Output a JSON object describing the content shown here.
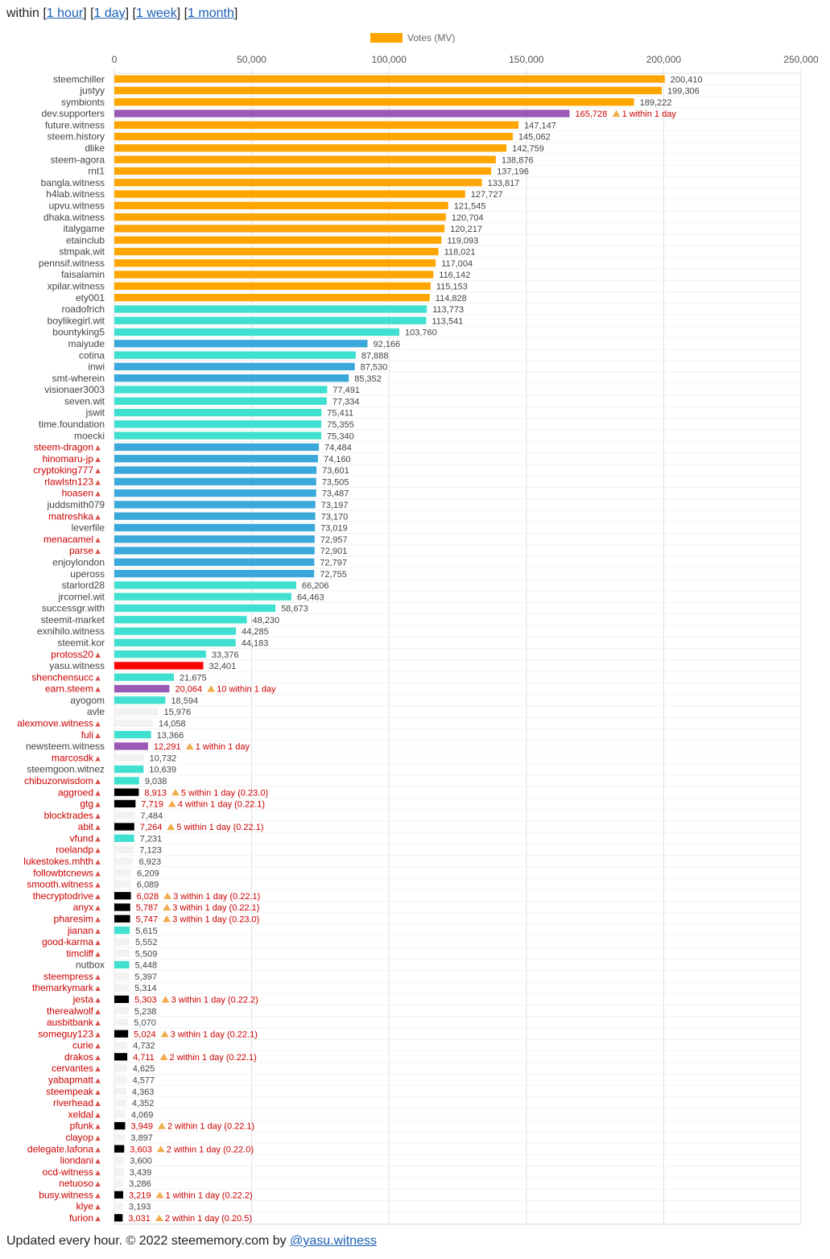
{
  "header": {
    "prefix": "within",
    "links": [
      "1 hour",
      "1 day",
      "1 week",
      "1 month"
    ]
  },
  "footer": {
    "text": "Updated every hour. © 2022 steememory.com by ",
    "link": "@yasu.witness"
  },
  "colors": {
    "orange": "#ffa500",
    "purple": "#9b59b6",
    "teal": "#40e0d0",
    "blue": "#3aa8da",
    "red": "#ff0000",
    "black": "#000000",
    "grey": "#f2f2f2",
    "active_label": "#444444",
    "disabled_label": "#cc0000",
    "grid": "#e0e0e0"
  },
  "chart_data": {
    "type": "bar",
    "orientation": "horizontal",
    "legend": "Votes (MV)",
    "legend_position": "top-center",
    "xlim": [
      0,
      250000
    ],
    "xticks": [
      "0",
      "50,000",
      "100,000",
      "150,000",
      "200,000",
      "250,000"
    ],
    "grid": true,
    "bars": [
      {
        "name": "steemchiller",
        "value": 200410,
        "value_label": "200,410",
        "color": "orange",
        "disabled": false,
        "note": ""
      },
      {
        "name": "justyy",
        "value": 199306,
        "value_label": "199,306",
        "color": "orange",
        "disabled": false,
        "note": ""
      },
      {
        "name": "symbionts",
        "value": 189222,
        "value_label": "189,222",
        "color": "orange",
        "disabled": false,
        "note": ""
      },
      {
        "name": "dev.supporters",
        "value": 165728,
        "value_label": "165,728",
        "color": "purple",
        "disabled": false,
        "note": "1 within 1 day"
      },
      {
        "name": "future.witness",
        "value": 147147,
        "value_label": "147,147",
        "color": "orange",
        "disabled": false,
        "note": ""
      },
      {
        "name": "steem.history",
        "value": 145062,
        "value_label": "145,062",
        "color": "orange",
        "disabled": false,
        "note": ""
      },
      {
        "name": "dlike",
        "value": 142759,
        "value_label": "142,759",
        "color": "orange",
        "disabled": false,
        "note": ""
      },
      {
        "name": "steem-agora",
        "value": 138876,
        "value_label": "138,876",
        "color": "orange",
        "disabled": false,
        "note": ""
      },
      {
        "name": "rnt1",
        "value": 137196,
        "value_label": "137,196",
        "color": "orange",
        "disabled": false,
        "note": ""
      },
      {
        "name": "bangla.witness",
        "value": 133817,
        "value_label": "133,817",
        "color": "orange",
        "disabled": false,
        "note": ""
      },
      {
        "name": "h4lab.witness",
        "value": 127727,
        "value_label": "127,727",
        "color": "orange",
        "disabled": false,
        "note": ""
      },
      {
        "name": "upvu.witness",
        "value": 121545,
        "value_label": "121,545",
        "color": "orange",
        "disabled": false,
        "note": ""
      },
      {
        "name": "dhaka.witness",
        "value": 120704,
        "value_label": "120,704",
        "color": "orange",
        "disabled": false,
        "note": ""
      },
      {
        "name": "italygame",
        "value": 120217,
        "value_label": "120,217",
        "color": "orange",
        "disabled": false,
        "note": ""
      },
      {
        "name": "etainclub",
        "value": 119093,
        "value_label": "119,093",
        "color": "orange",
        "disabled": false,
        "note": ""
      },
      {
        "name": "stmpak.wit",
        "value": 118021,
        "value_label": "118,021",
        "color": "orange",
        "disabled": false,
        "note": ""
      },
      {
        "name": "pennsif.witness",
        "value": 117004,
        "value_label": "117,004",
        "color": "orange",
        "disabled": false,
        "note": ""
      },
      {
        "name": "faisalamin",
        "value": 116142,
        "value_label": "116,142",
        "color": "orange",
        "disabled": false,
        "note": ""
      },
      {
        "name": "xpilar.witness",
        "value": 115153,
        "value_label": "115,153",
        "color": "orange",
        "disabled": false,
        "note": ""
      },
      {
        "name": "ety001",
        "value": 114828,
        "value_label": "114,828",
        "color": "orange",
        "disabled": false,
        "note": ""
      },
      {
        "name": "roadofrich",
        "value": 113773,
        "value_label": "113,773",
        "color": "teal",
        "disabled": false,
        "note": ""
      },
      {
        "name": "boylikegirl.wit",
        "value": 113541,
        "value_label": "113,541",
        "color": "teal",
        "disabled": false,
        "note": ""
      },
      {
        "name": "bountyking5",
        "value": 103760,
        "value_label": "103,760",
        "color": "teal",
        "disabled": false,
        "note": ""
      },
      {
        "name": "maiyude",
        "value": 92166,
        "value_label": "92,166",
        "color": "blue",
        "disabled": false,
        "note": ""
      },
      {
        "name": "cotina",
        "value": 87888,
        "value_label": "87,888",
        "color": "teal",
        "disabled": false,
        "note": ""
      },
      {
        "name": "inwi",
        "value": 87530,
        "value_label": "87,530",
        "color": "blue",
        "disabled": false,
        "note": ""
      },
      {
        "name": "smt-wherein",
        "value": 85352,
        "value_label": "85,352",
        "color": "blue",
        "disabled": false,
        "note": ""
      },
      {
        "name": "visionaer3003",
        "value": 77491,
        "value_label": "77,491",
        "color": "teal",
        "disabled": false,
        "note": ""
      },
      {
        "name": "seven.wit",
        "value": 77334,
        "value_label": "77,334",
        "color": "teal",
        "disabled": false,
        "note": ""
      },
      {
        "name": "jswit",
        "value": 75411,
        "value_label": "75,411",
        "color": "teal",
        "disabled": false,
        "note": ""
      },
      {
        "name": "time.foundation",
        "value": 75355,
        "value_label": "75,355",
        "color": "teal",
        "disabled": false,
        "note": ""
      },
      {
        "name": "moecki",
        "value": 75340,
        "value_label": "75,340",
        "color": "teal",
        "disabled": false,
        "note": ""
      },
      {
        "name": "steem-dragon",
        "value": 74484,
        "value_label": "74,484",
        "color": "blue",
        "disabled": true,
        "note": ""
      },
      {
        "name": "hinomaru-jp",
        "value": 74160,
        "value_label": "74,160",
        "color": "blue",
        "disabled": true,
        "note": ""
      },
      {
        "name": "cryptoking777",
        "value": 73601,
        "value_label": "73,601",
        "color": "blue",
        "disabled": true,
        "note": ""
      },
      {
        "name": "rlawlstn123",
        "value": 73505,
        "value_label": "73,505",
        "color": "blue",
        "disabled": true,
        "note": ""
      },
      {
        "name": "hoasen",
        "value": 73487,
        "value_label": "73,487",
        "color": "blue",
        "disabled": true,
        "note": ""
      },
      {
        "name": "juddsmith079",
        "value": 73197,
        "value_label": "73,197",
        "color": "blue",
        "disabled": false,
        "note": ""
      },
      {
        "name": "matreshka",
        "value": 73170,
        "value_label": "73,170",
        "color": "blue",
        "disabled": true,
        "note": ""
      },
      {
        "name": "leverfile",
        "value": 73019,
        "value_label": "73,019",
        "color": "blue",
        "disabled": false,
        "note": ""
      },
      {
        "name": "menacamel",
        "value": 72957,
        "value_label": "72,957",
        "color": "blue",
        "disabled": true,
        "note": ""
      },
      {
        "name": "parse",
        "value": 72901,
        "value_label": "72,901",
        "color": "blue",
        "disabled": true,
        "note": ""
      },
      {
        "name": "enjoylondon",
        "value": 72797,
        "value_label": "72,797",
        "color": "blue",
        "disabled": false,
        "note": ""
      },
      {
        "name": "upeross",
        "value": 72755,
        "value_label": "72,755",
        "color": "blue",
        "disabled": false,
        "note": ""
      },
      {
        "name": "starlord28",
        "value": 66206,
        "value_label": "66,206",
        "color": "teal",
        "disabled": false,
        "note": ""
      },
      {
        "name": "jrcornel.wit",
        "value": 64463,
        "value_label": "64,463",
        "color": "teal",
        "disabled": false,
        "note": ""
      },
      {
        "name": "successgr.with",
        "value": 58673,
        "value_label": "58,673",
        "color": "teal",
        "disabled": false,
        "note": ""
      },
      {
        "name": "steemit-market",
        "value": 48230,
        "value_label": "48,230",
        "color": "teal",
        "disabled": false,
        "note": ""
      },
      {
        "name": "exnihilo.witness",
        "value": 44285,
        "value_label": "44,285",
        "color": "teal",
        "disabled": false,
        "note": ""
      },
      {
        "name": "steemit.kor",
        "value": 44183,
        "value_label": "44,183",
        "color": "teal",
        "disabled": false,
        "note": ""
      },
      {
        "name": "protoss20",
        "value": 33376,
        "value_label": "33,376",
        "color": "teal",
        "disabled": true,
        "note": ""
      },
      {
        "name": "yasu.witness",
        "value": 32401,
        "value_label": "32,401",
        "color": "red",
        "disabled": false,
        "note": ""
      },
      {
        "name": "shenchensucc",
        "value": 21675,
        "value_label": "21,675",
        "color": "teal",
        "disabled": true,
        "note": ""
      },
      {
        "name": "earn.steem",
        "value": 20064,
        "value_label": "20,064",
        "color": "purple",
        "disabled": true,
        "note": "10 within 1 day"
      },
      {
        "name": "ayogom",
        "value": 18594,
        "value_label": "18,594",
        "color": "teal",
        "disabled": false,
        "note": ""
      },
      {
        "name": "avle",
        "value": 15976,
        "value_label": "15,976",
        "color": "grey",
        "disabled": false,
        "note": ""
      },
      {
        "name": "alexmove.witness",
        "value": 14058,
        "value_label": "14,058",
        "color": "grey",
        "disabled": true,
        "note": ""
      },
      {
        "name": "fuli",
        "value": 13366,
        "value_label": "13,366",
        "color": "teal",
        "disabled": true,
        "note": ""
      },
      {
        "name": "newsteem.witness",
        "value": 12291,
        "value_label": "12,291",
        "color": "purple",
        "disabled": false,
        "note": "1 within 1 day"
      },
      {
        "name": "marcosdk",
        "value": 10732,
        "value_label": "10,732",
        "color": "grey",
        "disabled": true,
        "note": ""
      },
      {
        "name": "steemgoon.witnez",
        "value": 10639,
        "value_label": "10,639",
        "color": "teal",
        "disabled": false,
        "note": ""
      },
      {
        "name": "chibuzorwisdom",
        "value": 9038,
        "value_label": "9,038",
        "color": "teal",
        "disabled": true,
        "note": ""
      },
      {
        "name": "aggroed",
        "value": 8913,
        "value_label": "8,913",
        "color": "black",
        "disabled": true,
        "note": "5 within 1 day (0.23.0)"
      },
      {
        "name": "gtg",
        "value": 7719,
        "value_label": "7,719",
        "color": "black",
        "disabled": true,
        "note": "4 within 1 day (0.22.1)"
      },
      {
        "name": "blocktrades",
        "value": 7484,
        "value_label": "7,484",
        "color": "grey",
        "disabled": true,
        "note": ""
      },
      {
        "name": "abit",
        "value": 7264,
        "value_label": "7,264",
        "color": "black",
        "disabled": true,
        "note": "5 within 1 day (0.22.1)"
      },
      {
        "name": "vfund",
        "value": 7231,
        "value_label": "7,231",
        "color": "teal",
        "disabled": true,
        "note": ""
      },
      {
        "name": "roelandp",
        "value": 7123,
        "value_label": "7,123",
        "color": "grey",
        "disabled": true,
        "note": ""
      },
      {
        "name": "lukestokes.mhth",
        "value": 6923,
        "value_label": "6,923",
        "color": "grey",
        "disabled": true,
        "note": ""
      },
      {
        "name": "followbtcnews",
        "value": 6209,
        "value_label": "6,209",
        "color": "grey",
        "disabled": true,
        "note": ""
      },
      {
        "name": "smooth.witness",
        "value": 6089,
        "value_label": "6,089",
        "color": "grey",
        "disabled": true,
        "note": ""
      },
      {
        "name": "thecryptodrive",
        "value": 6028,
        "value_label": "6,028",
        "color": "black",
        "disabled": true,
        "note": "3 within 1 day (0.22.1)"
      },
      {
        "name": "anyx",
        "value": 5787,
        "value_label": "5,787",
        "color": "black",
        "disabled": true,
        "note": "3 within 1 day (0.22.1)"
      },
      {
        "name": "pharesim",
        "value": 5747,
        "value_label": "5,747",
        "color": "black",
        "disabled": true,
        "note": "3 within 1 day (0.23.0)"
      },
      {
        "name": "jianan",
        "value": 5615,
        "value_label": "5,615",
        "color": "teal",
        "disabled": true,
        "note": ""
      },
      {
        "name": "good-karma",
        "value": 5552,
        "value_label": "5,552",
        "color": "grey",
        "disabled": true,
        "note": ""
      },
      {
        "name": "timcliff",
        "value": 5509,
        "value_label": "5,509",
        "color": "grey",
        "disabled": true,
        "note": ""
      },
      {
        "name": "nutbox",
        "value": 5448,
        "value_label": "5,448",
        "color": "teal",
        "disabled": false,
        "note": ""
      },
      {
        "name": "steempress",
        "value": 5397,
        "value_label": "5,397",
        "color": "grey",
        "disabled": true,
        "note": ""
      },
      {
        "name": "themarkymark",
        "value": 5314,
        "value_label": "5,314",
        "color": "grey",
        "disabled": true,
        "note": ""
      },
      {
        "name": "jesta",
        "value": 5303,
        "value_label": "5,303",
        "color": "black",
        "disabled": true,
        "note": "3 within 1 day (0.22.2)"
      },
      {
        "name": "therealwolf",
        "value": 5238,
        "value_label": "5,238",
        "color": "grey",
        "disabled": true,
        "note": ""
      },
      {
        "name": "ausbitbank",
        "value": 5070,
        "value_label": "5,070",
        "color": "grey",
        "disabled": true,
        "note": ""
      },
      {
        "name": "someguy123",
        "value": 5024,
        "value_label": "5,024",
        "color": "black",
        "disabled": true,
        "note": "3 within 1 day (0.22.1)"
      },
      {
        "name": "curie",
        "value": 4732,
        "value_label": "4,732",
        "color": "grey",
        "disabled": true,
        "note": ""
      },
      {
        "name": "drakos",
        "value": 4711,
        "value_label": "4,711",
        "color": "black",
        "disabled": true,
        "note": "2 within 1 day (0.22.1)"
      },
      {
        "name": "cervantes",
        "value": 4625,
        "value_label": "4,625",
        "color": "grey",
        "disabled": true,
        "note": ""
      },
      {
        "name": "yabapmatt",
        "value": 4577,
        "value_label": "4,577",
        "color": "grey",
        "disabled": true,
        "note": ""
      },
      {
        "name": "steempeak",
        "value": 4363,
        "value_label": "4,363",
        "color": "grey",
        "disabled": true,
        "note": ""
      },
      {
        "name": "riverhead",
        "value": 4352,
        "value_label": "4,352",
        "color": "grey",
        "disabled": true,
        "note": ""
      },
      {
        "name": "xeldal",
        "value": 4069,
        "value_label": "4,069",
        "color": "grey",
        "disabled": true,
        "note": ""
      },
      {
        "name": "pfunk",
        "value": 3949,
        "value_label": "3,949",
        "color": "black",
        "disabled": true,
        "note": "2 within 1 day (0.22.1)"
      },
      {
        "name": "clayop",
        "value": 3897,
        "value_label": "3,897",
        "color": "grey",
        "disabled": true,
        "note": ""
      },
      {
        "name": "delegate.lafona",
        "value": 3603,
        "value_label": "3,603",
        "color": "black",
        "disabled": true,
        "note": "2 within 1 day (0.22.0)"
      },
      {
        "name": "liondani",
        "value": 3600,
        "value_label": "3,600",
        "color": "grey",
        "disabled": true,
        "note": ""
      },
      {
        "name": "ocd-witness",
        "value": 3439,
        "value_label": "3,439",
        "color": "grey",
        "disabled": true,
        "note": ""
      },
      {
        "name": "netuoso",
        "value": 3286,
        "value_label": "3,286",
        "color": "grey",
        "disabled": true,
        "note": ""
      },
      {
        "name": "busy.witness",
        "value": 3219,
        "value_label": "3,219",
        "color": "black",
        "disabled": true,
        "note": "1 within 1 day (0.22.2)"
      },
      {
        "name": "klye",
        "value": 3193,
        "value_label": "3,193",
        "color": "grey",
        "disabled": true,
        "note": ""
      },
      {
        "name": "furion",
        "value": 3031,
        "value_label": "3,031",
        "color": "black",
        "disabled": true,
        "note": "2 within 1 day (0.20.5)"
      }
    ]
  }
}
